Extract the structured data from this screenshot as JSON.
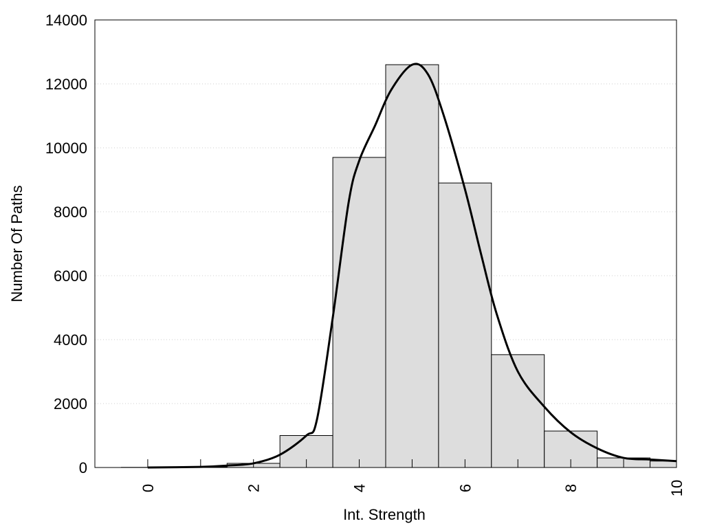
{
  "chart_data": {
    "type": "bar",
    "title": "",
    "xlabel": "Int. Strength",
    "ylabel": "Number Of Paths",
    "xlim": [
      -1,
      10
    ],
    "ylim": [
      0,
      14000
    ],
    "x_ticks": [
      0,
      2,
      4,
      6,
      8,
      10
    ],
    "y_ticks": [
      0,
      2000,
      4000,
      6000,
      8000,
      10000,
      12000,
      14000
    ],
    "grid": "horizontal dotted",
    "legend": "none",
    "bin_width": 1,
    "series": [
      {
        "type": "bar",
        "x": [
          0,
          1,
          2,
          3,
          4,
          5,
          6,
          7,
          8,
          9,
          10
        ],
        "values": [
          5,
          20,
          130,
          1000,
          9700,
          12600,
          8900,
          3530,
          1140,
          300,
          200
        ]
      },
      {
        "type": "line",
        "x": [
          0,
          1,
          1.5,
          2,
          2.5,
          3,
          3.2,
          3.5,
          3.8,
          4,
          4.3,
          4.6,
          5,
          5.3,
          5.6,
          6,
          6.3,
          6.6,
          7,
          7.5,
          8,
          8.5,
          9,
          9.5,
          10
        ],
        "values": [
          0,
          20,
          60,
          130,
          400,
          1000,
          1500,
          4700,
          8300,
          9600,
          10700,
          11800,
          12600,
          12300,
          11000,
          8700,
          6700,
          4800,
          3000,
          1900,
          1100,
          600,
          300,
          250,
          200
        ]
      }
    ],
    "colors": {
      "bar_fill": "#dddddd",
      "bar_stroke": "#000000",
      "line": "#000000",
      "grid": "#cccccc"
    }
  }
}
